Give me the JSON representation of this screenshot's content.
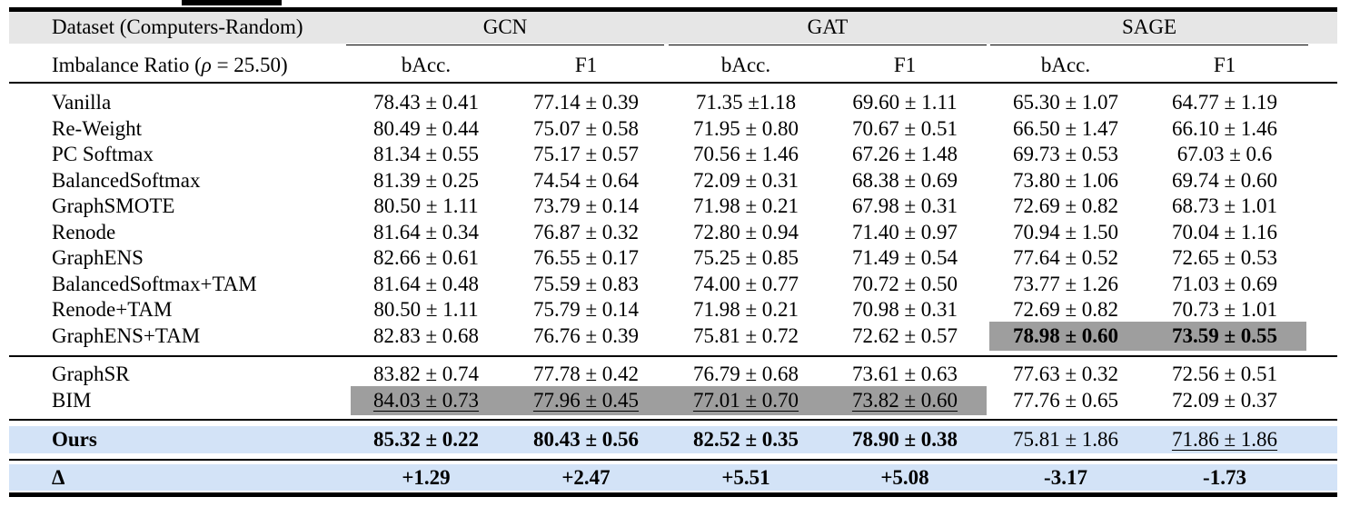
{
  "header": {
    "dataset_label": "Dataset (Computers-Random)",
    "ratio_prefix": "Imbalance Ratio (",
    "ratio_symbol": "ρ",
    "ratio_suffix": " = 25.50)",
    "models": [
      "GCN",
      "GAT",
      "SAGE"
    ],
    "metrics": [
      "bAcc.",
      "F1",
      "bAcc.",
      "F1",
      "bAcc.",
      "F1"
    ]
  },
  "group1": [
    {
      "method": "Vanilla",
      "values": [
        "78.43 ± 0.41",
        "77.14 ± 0.39",
        "71.35 ±1.18",
        "69.60 ± 1.11",
        "65.30 ± 1.07",
        "64.77 ± 1.19"
      ]
    },
    {
      "method": "Re-Weight",
      "values": [
        "80.49 ± 0.44",
        "75.07 ± 0.58",
        "71.95 ± 0.80",
        "70.67 ± 0.51",
        "66.50 ± 1.47",
        "66.10 ± 1.46"
      ]
    },
    {
      "method": "PC Softmax",
      "values": [
        "81.34 ± 0.55",
        "75.17 ± 0.57",
        "70.56 ± 1.46",
        "67.26 ± 1.48",
        "69.73 ± 0.53",
        "67.03 ± 0.6"
      ]
    },
    {
      "method": "BalancedSoftmax",
      "values": [
        "81.39 ± 0.25",
        "74.54 ± 0.64",
        "72.09 ± 0.31",
        "68.38 ± 0.69",
        "73.80 ± 1.06",
        "69.74 ± 0.60"
      ]
    },
    {
      "method": "GraphSMOTE",
      "values": [
        "80.50 ± 1.11",
        "73.79 ± 0.14",
        "71.98 ± 0.21",
        "67.98 ± 0.31",
        "72.69 ± 0.82",
        "68.73 ± 1.01"
      ]
    },
    {
      "method": "Renode",
      "values": [
        "81.64 ± 0.34",
        "76.87 ± 0.32",
        "72.80 ± 0.94",
        "71.40 ± 0.97",
        "70.94 ± 1.50",
        "70.04 ± 1.16"
      ]
    },
    {
      "method": "GraphENS",
      "values": [
        "82.66 ± 0.61",
        "76.55 ± 0.17",
        "75.25 ± 0.85",
        "71.49 ± 0.54",
        "77.64 ± 0.52",
        "72.65 ± 0.53"
      ]
    },
    {
      "method": "BalancedSoftmax+TAM",
      "values": [
        "81.64 ± 0.48",
        "75.59 ± 0.83",
        "74.00 ± 0.77",
        "70.72 ± 0.50",
        "73.77 ± 1.26",
        "71.03 ± 0.69"
      ]
    },
    {
      "method": "Renode+TAM",
      "values": [
        "80.50 ± 1.11",
        "75.79 ± 0.14",
        "71.98 ± 0.21",
        "70.98 ± 0.31",
        "72.69 ± 0.82",
        "70.73 ± 1.01"
      ]
    },
    {
      "method": "GraphENS+TAM",
      "values": [
        "82.83 ± 0.68",
        "76.76 ± 0.39",
        "75.81 ± 0.72",
        "72.62 ± 0.57",
        "78.98 ± 0.60",
        "73.59 ± 0.55"
      ]
    }
  ],
  "group2": [
    {
      "method": "GraphSR",
      "values": [
        "83.82 ± 0.74",
        "77.78 ± 0.42",
        "76.79 ± 0.68",
        "73.61 ± 0.63",
        "77.63 ± 0.32",
        "72.56 ± 0.51"
      ]
    },
    {
      "method": "BIM",
      "values": [
        "84.03 ± 0.73",
        "77.96 ± 0.45",
        "77.01 ± 0.70",
        "73.82 ± 0.60",
        "77.76 ± 0.65",
        "72.09 ± 0.37"
      ]
    }
  ],
  "ours": {
    "method": "Ours",
    "values": [
      "85.32 ± 0.22",
      "80.43 ± 0.56",
      "82.52 ± 0.35",
      "78.90 ± 0.38",
      "75.81 ± 1.86",
      "71.86 ± 1.86"
    ]
  },
  "delta": {
    "method": "Δ",
    "values": [
      "+1.29",
      "+2.47",
      "+5.51",
      "+5.08",
      "-3.17",
      "-1.73"
    ]
  },
  "colors": {
    "header_band": "#e6e6e6",
    "ours_band": "#d3e3f7",
    "highlight_cell": "#9e9e9e"
  }
}
